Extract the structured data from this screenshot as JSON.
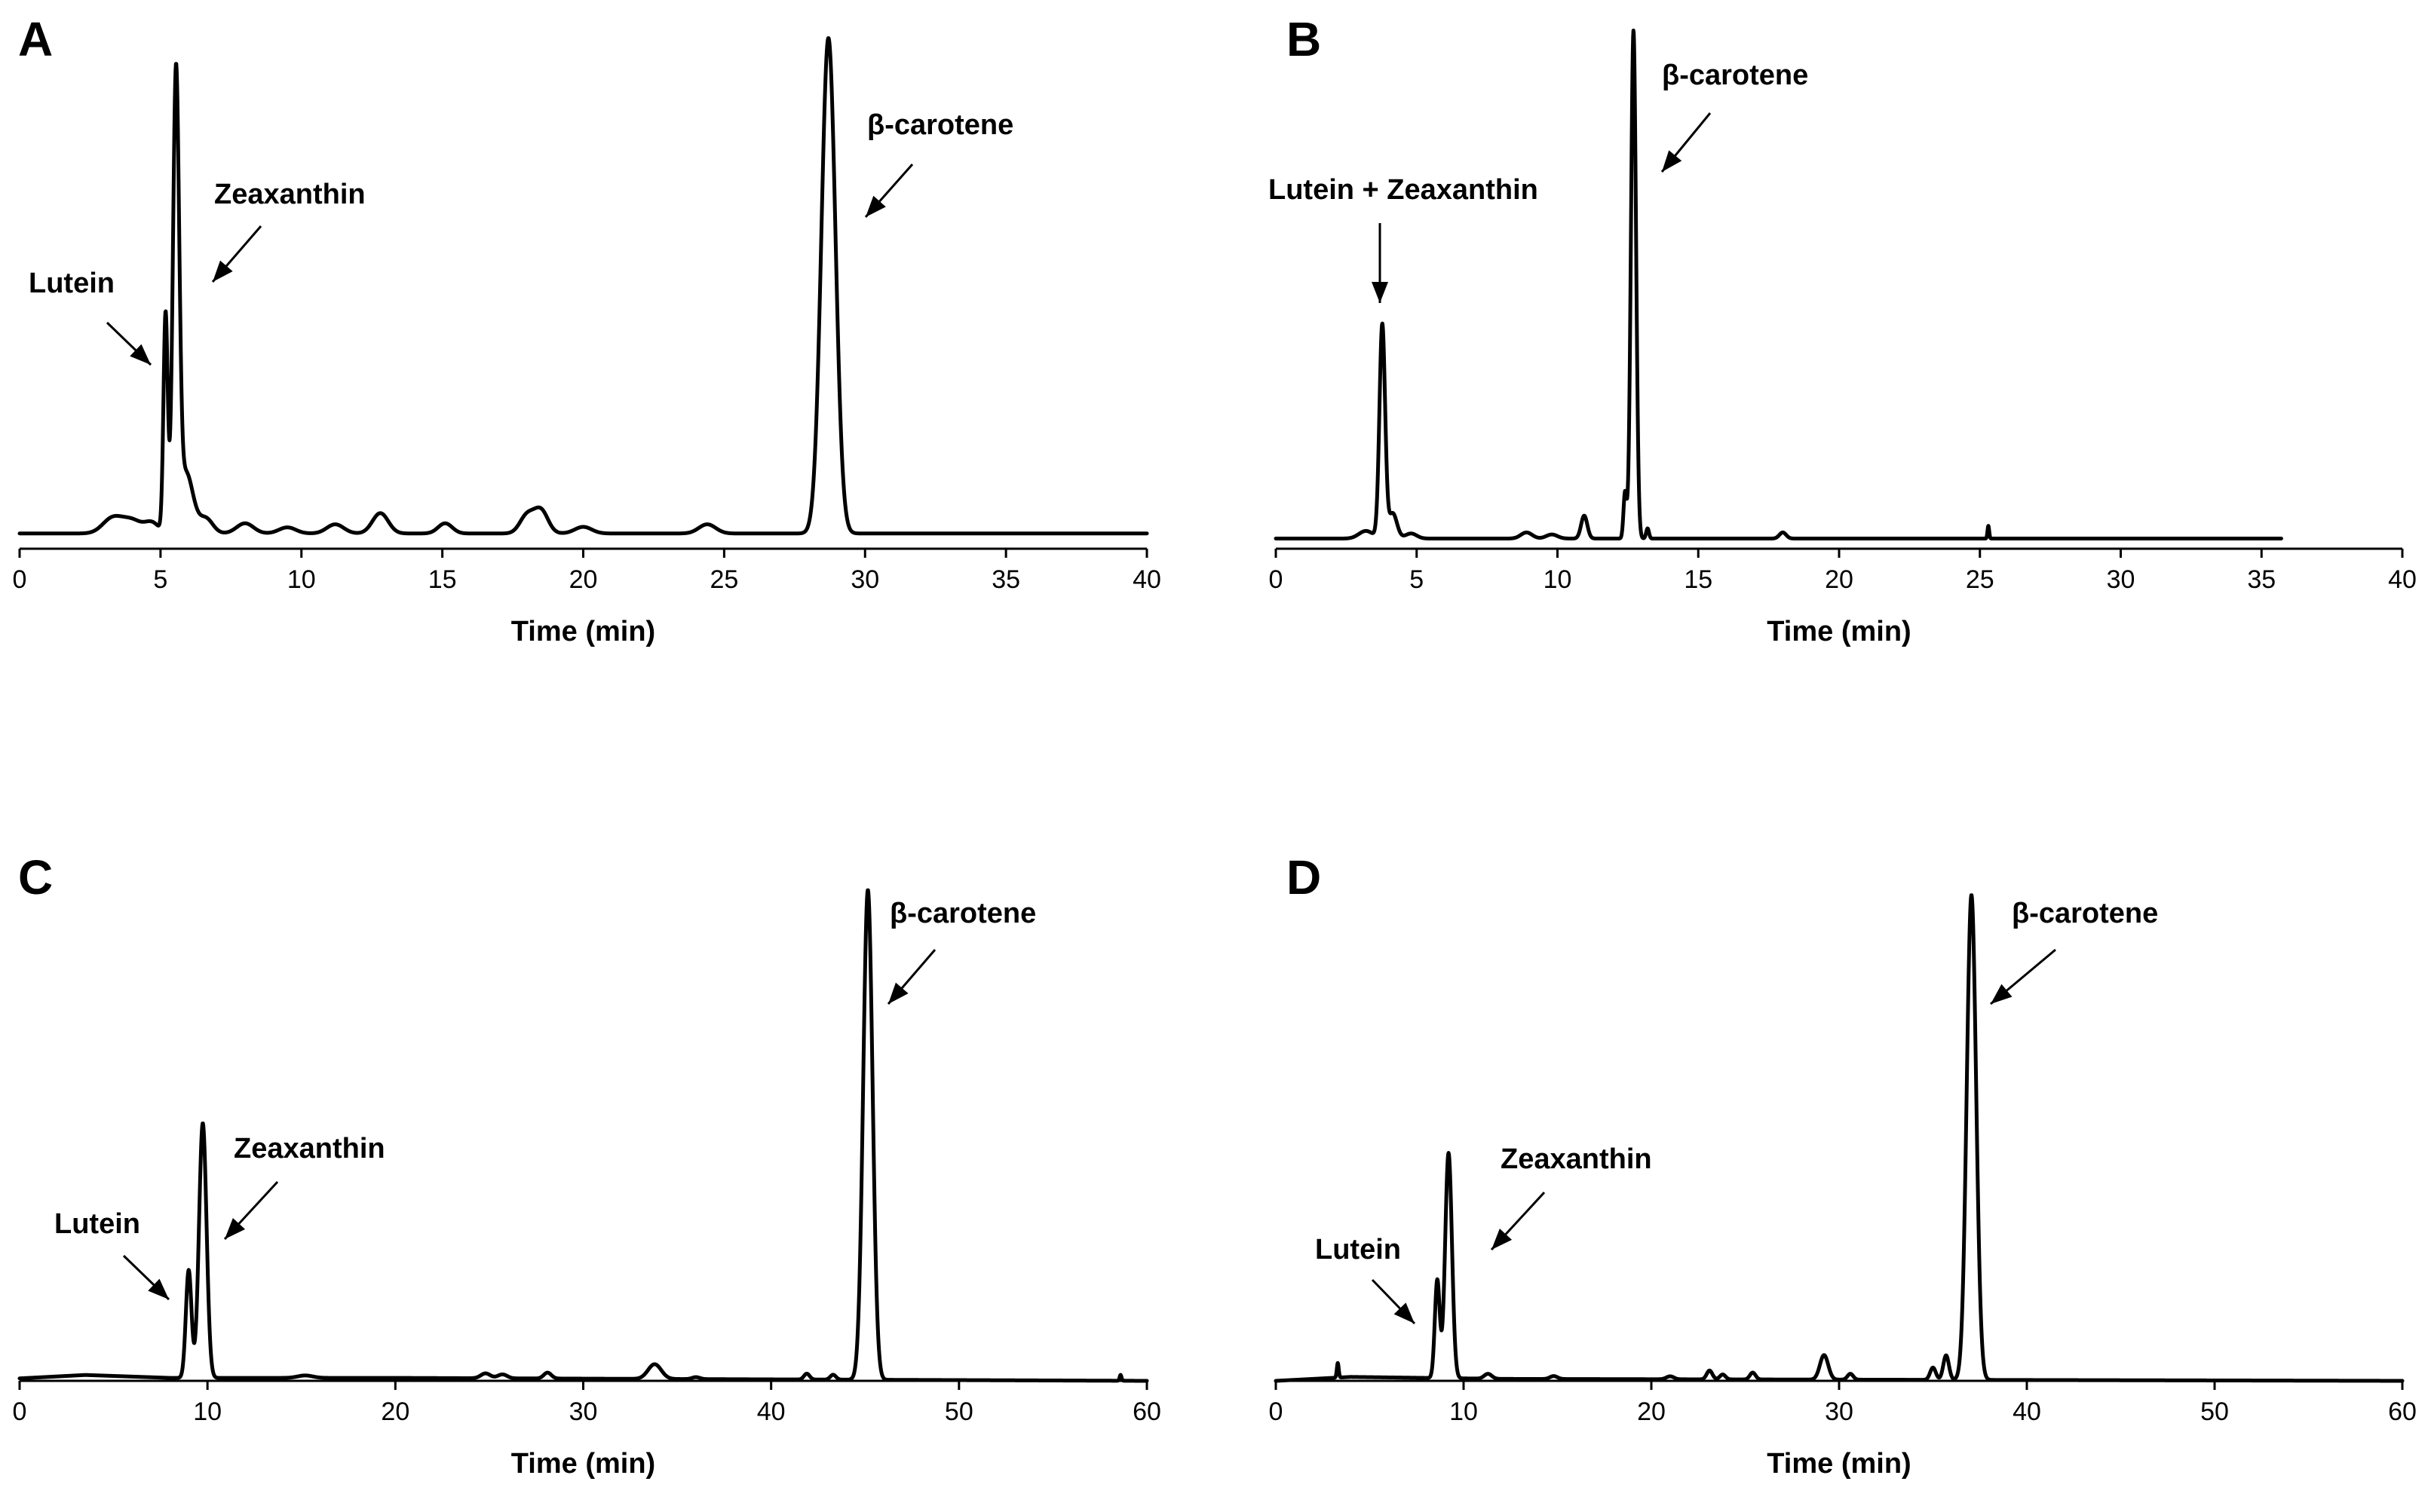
{
  "chart_data": [
    {
      "panel": "A",
      "type": "line",
      "xlabel": "Time (min)",
      "ylabel": "",
      "xlim": [
        0,
        40
      ],
      "xticks": [
        0,
        5,
        10,
        15,
        20,
        25,
        30,
        35,
        40
      ],
      "tick_labels": [
        "0",
        "5",
        "10",
        "15",
        "20",
        "25",
        "30",
        "35",
        "40"
      ],
      "trace_end": 40,
      "baseline": 0.03,
      "ymax": 1.05,
      "drift": [
        [
          0,
          0
        ],
        [
          40,
          0
        ]
      ],
      "peaks": [
        {
          "t": 3.3,
          "h": 0.03,
          "w": 0.35
        },
        {
          "t": 4.0,
          "h": 0.025,
          "w": 0.35
        },
        {
          "t": 4.7,
          "h": 0.02,
          "w": 0.25
        },
        {
          "t": 5.18,
          "h": 0.43,
          "w": 0.075
        },
        {
          "t": 5.55,
          "h": 0.88,
          "w": 0.11
        },
        {
          "t": 5.9,
          "h": 0.12,
          "w": 0.25
        },
        {
          "t": 6.6,
          "h": 0.03,
          "w": 0.25
        },
        {
          "t": 8.0,
          "h": 0.02,
          "w": 0.3
        },
        {
          "t": 9.5,
          "h": 0.012,
          "w": 0.3
        },
        {
          "t": 11.2,
          "h": 0.018,
          "w": 0.3
        },
        {
          "t": 12.8,
          "h": 0.04,
          "w": 0.28
        },
        {
          "t": 15.1,
          "h": 0.02,
          "w": 0.25
        },
        {
          "t": 18.0,
          "h": 0.035,
          "w": 0.25
        },
        {
          "t": 18.5,
          "h": 0.045,
          "w": 0.25
        },
        {
          "t": 20.0,
          "h": 0.013,
          "w": 0.3
        },
        {
          "t": 24.4,
          "h": 0.018,
          "w": 0.3
        },
        {
          "t": 28.7,
          "h": 0.975,
          "w": 0.25
        }
      ],
      "annotations": [
        {
          "text": "Lutein"
        },
        {
          "text": "Zeaxanthin"
        },
        {
          "text": "β-carotene"
        }
      ]
    },
    {
      "panel": "B",
      "type": "line",
      "xlabel": "Time (min)",
      "ylabel": "",
      "xlim": [
        0,
        40
      ],
      "xticks": [
        0,
        5,
        10,
        15,
        20,
        25,
        30,
        35,
        40
      ],
      "tick_labels": [
        "0",
        "5",
        "10",
        "15",
        "20",
        "25",
        "30",
        "35",
        "40"
      ],
      "trace_end": 35.7,
      "baseline": 0.02,
      "ymax": 1.05,
      "drift": [
        [
          0,
          0
        ],
        [
          35.7,
          0
        ]
      ],
      "peaks": [
        {
          "t": 3.2,
          "h": 0.015,
          "w": 0.25
        },
        {
          "t": 3.78,
          "h": 0.42,
          "w": 0.1
        },
        {
          "t": 4.15,
          "h": 0.05,
          "w": 0.15
        },
        {
          "t": 4.8,
          "h": 0.01,
          "w": 0.2
        },
        {
          "t": 8.9,
          "h": 0.012,
          "w": 0.2
        },
        {
          "t": 9.8,
          "h": 0.008,
          "w": 0.2
        },
        {
          "t": 10.95,
          "h": 0.045,
          "w": 0.11
        },
        {
          "t": 12.4,
          "h": 0.09,
          "w": 0.055
        },
        {
          "t": 12.7,
          "h": 1.0,
          "w": 0.09
        },
        {
          "t": 13.2,
          "h": 0.02,
          "w": 0.05
        },
        {
          "t": 18.0,
          "h": 0.012,
          "w": 0.12
        },
        {
          "t": 25.3,
          "h": 0.025,
          "w": 0.03
        }
      ],
      "annotations": [
        {
          "text": "Lutein + Zeaxanthin"
        },
        {
          "text": "β-carotene"
        }
      ]
    },
    {
      "panel": "C",
      "type": "line",
      "xlabel": "Time (min)",
      "ylabel": "",
      "xlim": [
        0,
        60
      ],
      "xticks": [
        0,
        10,
        20,
        30,
        40,
        50,
        60
      ],
      "tick_labels": [
        "0",
        "10",
        "20",
        "30",
        "40",
        "50",
        "60"
      ],
      "trace_end": 60,
      "baseline": 0.0,
      "ymax": 1.08,
      "drift": [
        [
          0,
          0.005
        ],
        [
          3.5,
          0.012
        ],
        [
          8,
          0.006
        ],
        [
          20,
          0.006
        ],
        [
          40,
          0.003
        ],
        [
          60,
          0.0
        ]
      ],
      "peaks": [
        {
          "t": 9.0,
          "h": 0.22,
          "w": 0.15
        },
        {
          "t": 9.75,
          "h": 0.52,
          "w": 0.2
        },
        {
          "t": 15.2,
          "h": 0.005,
          "w": 0.4
        },
        {
          "t": 24.8,
          "h": 0.01,
          "w": 0.25
        },
        {
          "t": 25.7,
          "h": 0.008,
          "w": 0.25
        },
        {
          "t": 28.1,
          "h": 0.012,
          "w": 0.2
        },
        {
          "t": 33.8,
          "h": 0.03,
          "w": 0.35
        },
        {
          "t": 36.0,
          "h": 0.004,
          "w": 0.2
        },
        {
          "t": 41.9,
          "h": 0.012,
          "w": 0.15
        },
        {
          "t": 43.3,
          "h": 0.01,
          "w": 0.15
        },
        {
          "t": 45.15,
          "h": 1.0,
          "w": 0.25
        },
        {
          "t": 58.6,
          "h": 0.012,
          "w": 0.05
        }
      ],
      "annotations": [
        {
          "text": "Lutein"
        },
        {
          "text": "Zeaxanthin"
        },
        {
          "text": "β-carotene"
        }
      ]
    },
    {
      "panel": "D",
      "type": "line",
      "xlabel": "Time (min)",
      "ylabel": "",
      "xlim": [
        0,
        60
      ],
      "xticks": [
        0,
        10,
        20,
        30,
        40,
        50,
        60
      ],
      "tick_labels": [
        "0",
        "10",
        "20",
        "30",
        "40",
        "50",
        "60"
      ],
      "trace_end": 60,
      "baseline": 0.0,
      "ymax": 1.08,
      "drift": [
        [
          0,
          0.0
        ],
        [
          4,
          0.008
        ],
        [
          12,
          0.004
        ],
        [
          60,
          0.0
        ]
      ],
      "peaks": [
        {
          "t": 3.3,
          "h": 0.03,
          "w": 0.05
        },
        {
          "t": 8.6,
          "h": 0.2,
          "w": 0.13
        },
        {
          "t": 9.2,
          "h": 0.46,
          "w": 0.18
        },
        {
          "t": 11.3,
          "h": 0.01,
          "w": 0.2
        },
        {
          "t": 14.8,
          "h": 0.006,
          "w": 0.2
        },
        {
          "t": 21.0,
          "h": 0.006,
          "w": 0.2
        },
        {
          "t": 23.1,
          "h": 0.018,
          "w": 0.15
        },
        {
          "t": 23.8,
          "h": 0.01,
          "w": 0.15
        },
        {
          "t": 25.4,
          "h": 0.014,
          "w": 0.15
        },
        {
          "t": 29.2,
          "h": 0.05,
          "w": 0.22
        },
        {
          "t": 30.6,
          "h": 0.012,
          "w": 0.15
        },
        {
          "t": 35.0,
          "h": 0.025,
          "w": 0.15
        },
        {
          "t": 35.7,
          "h": 0.05,
          "w": 0.15
        },
        {
          "t": 37.05,
          "h": 0.99,
          "w": 0.25
        }
      ],
      "annotations": [
        {
          "text": "Lutein"
        },
        {
          "text": "Zeaxanthin"
        },
        {
          "text": "β-carotene"
        }
      ]
    }
  ]
}
